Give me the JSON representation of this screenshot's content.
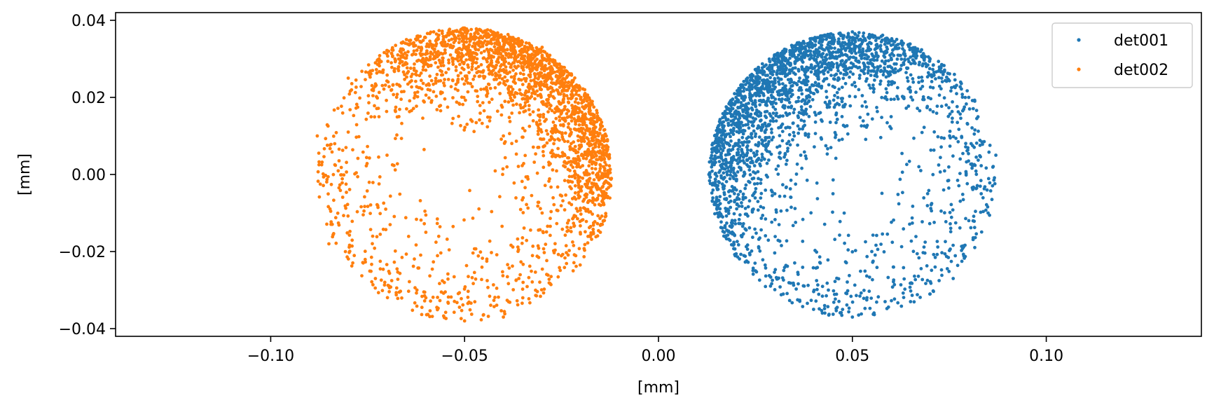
{
  "chart_data": {
    "type": "scatter",
    "xlabel": "[mm]",
    "ylabel": "[mm]",
    "xlim": [
      -0.14,
      0.14
    ],
    "ylim": [
      -0.042,
      0.042
    ],
    "xticks": [
      -0.1,
      -0.05,
      0.0,
      0.05,
      0.1
    ],
    "xtick_labels": [
      "−0.10",
      "−0.05",
      "0.00",
      "0.05",
      "0.10"
    ],
    "yticks": [
      0.04,
      0.02,
      0.0,
      -0.02,
      -0.04
    ],
    "ytick_labels": [
      "0.04",
      "0.02",
      "0.00",
      "−0.02",
      "−0.04"
    ],
    "grid": false,
    "legend_position": "top-right",
    "series": [
      {
        "name": "det001",
        "color": "#1f77b4",
        "distribution": {
          "center": [
            0.05,
            0.0
          ],
          "radius": 0.037,
          "denser_toward": "upper-left edge",
          "approx_points": 2600
        },
        "points": [
          [
            0.013,
            0.0
          ],
          [
            0.015,
            0.01
          ],
          [
            0.02,
            0.02
          ],
          [
            0.03,
            0.03
          ],
          [
            0.05,
            0.037
          ],
          [
            0.07,
            0.03
          ],
          [
            0.08,
            0.02
          ],
          [
            0.087,
            0.005
          ],
          [
            0.085,
            -0.01
          ],
          [
            0.076,
            -0.027
          ],
          [
            0.065,
            -0.033
          ],
          [
            0.05,
            -0.037
          ],
          [
            0.04,
            -0.035
          ],
          [
            0.025,
            -0.025
          ],
          [
            0.017,
            -0.015
          ],
          [
            0.035,
            0.01
          ],
          [
            0.045,
            -0.005
          ],
          [
            0.06,
            0.015
          ],
          [
            0.055,
            -0.02
          ],
          [
            0.03,
            -0.005
          ]
        ]
      },
      {
        "name": "det002",
        "color": "#ff7f0e",
        "distribution": {
          "center": [
            -0.05,
            0.0
          ],
          "radius": 0.038,
          "denser_toward": "upper-right edge",
          "hole_center": [
            -0.055,
            0.0
          ],
          "hole_radius": 0.0065,
          "approx_points": 2600
        },
        "points": [
          [
            -0.088,
            0.01
          ],
          [
            -0.085,
            -0.018
          ],
          [
            -0.08,
            0.025
          ],
          [
            -0.073,
            -0.027
          ],
          [
            -0.065,
            0.035
          ],
          [
            -0.05,
            0.038
          ],
          [
            -0.03,
            0.033
          ],
          [
            -0.02,
            0.02
          ],
          [
            -0.013,
            0.0
          ],
          [
            -0.015,
            -0.015
          ],
          [
            -0.022,
            -0.025
          ],
          [
            -0.035,
            -0.032
          ],
          [
            -0.05,
            -0.038
          ],
          [
            -0.06,
            -0.032
          ],
          [
            -0.04,
            -0.037
          ],
          [
            -0.04,
            0.01
          ],
          [
            -0.03,
            -0.01
          ],
          [
            -0.07,
            0.005
          ],
          [
            -0.045,
            0.025
          ],
          [
            -0.06,
            -0.015
          ]
        ]
      }
    ]
  }
}
